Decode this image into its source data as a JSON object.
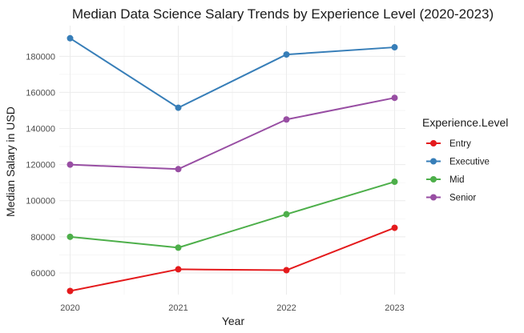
{
  "chart_data": {
    "type": "line",
    "title": "Median Data Science Salary Trends by Experience Level (2020-2023)",
    "xlabel": "Year",
    "ylabel": "Median Salary in USD",
    "x": [
      2020,
      2021,
      2022,
      2023
    ],
    "x_tick_labels": [
      "2020",
      "2021",
      "2022",
      "2023"
    ],
    "xlim": [
      2019.9,
      2023.1
    ],
    "ylim": [
      48000,
      197000
    ],
    "y_ticks": [
      60000,
      80000,
      100000,
      120000,
      140000,
      160000,
      180000
    ],
    "y_tick_labels": [
      "60000",
      "80000",
      "100000",
      "120000",
      "140000",
      "160000",
      "180000"
    ],
    "grid": true,
    "legend": {
      "title": "Experience.Level",
      "placement": "right"
    },
    "series": [
      {
        "name": "Entry",
        "color": "#e41a1c",
        "values": [
          50000,
          62000,
          61500,
          85000
        ]
      },
      {
        "name": "Executive",
        "color": "#377eb8",
        "values": [
          190000,
          151500,
          181000,
          185000
        ]
      },
      {
        "name": "Mid",
        "color": "#4daf4a",
        "values": [
          80000,
          74000,
          92500,
          110500
        ]
      },
      {
        "name": "Senior",
        "color": "#984ea3",
        "values": [
          120000,
          117500,
          145000,
          157000
        ]
      }
    ]
  }
}
